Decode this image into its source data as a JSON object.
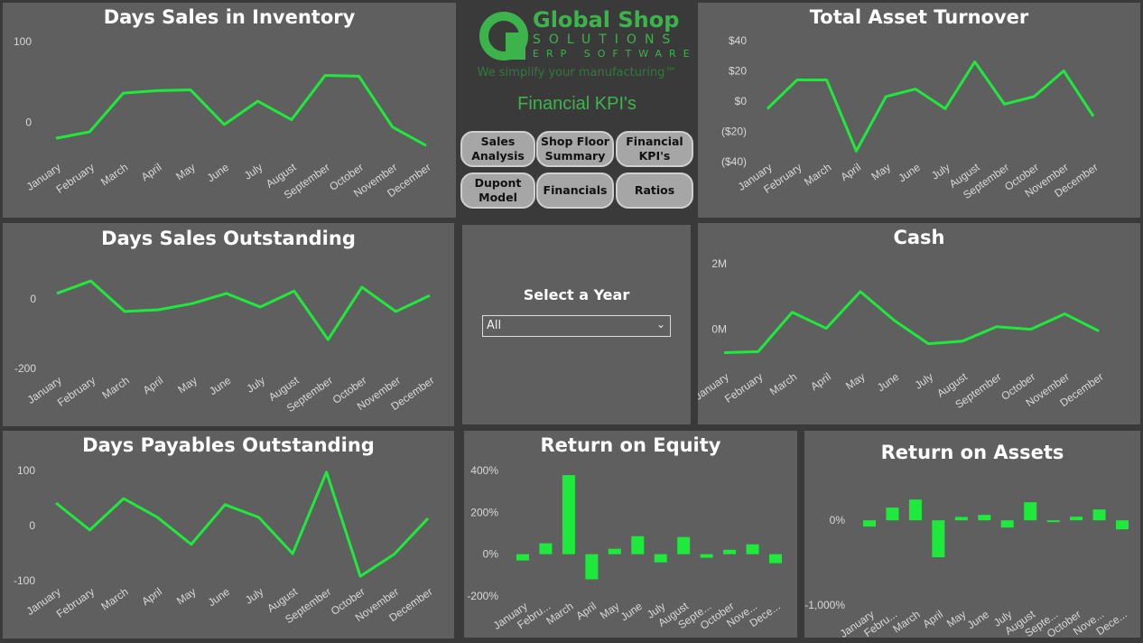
{
  "logo": {
    "name": "Global Shop",
    "line2": "SOLUTIONS",
    "line3": "ERP SOFTWARE",
    "tagline": "We simplify your manufacturing™",
    "color": "#3cb44b"
  },
  "page_title": "Financial KPI's",
  "nav": [
    "Sales\nAnalysis",
    "Shop Floor\nSummary",
    "Financial\nKPI's",
    "Dupont\nModel",
    "Financials",
    "Ratios"
  ],
  "year_filter": {
    "label": "Select a Year",
    "value": "All"
  },
  "line_color": "#1eea3c",
  "chart_data": [
    {
      "id": "dsi",
      "type": "line",
      "title": "Days Sales in Inventory",
      "categories": [
        "January",
        "February",
        "March",
        "April",
        "May",
        "June",
        "July",
        "August",
        "September",
        "October",
        "November",
        "December"
      ],
      "values": [
        -20,
        -12,
        36,
        39,
        40,
        -3,
        26,
        3,
        58,
        57,
        -6,
        -29
      ],
      "ylim": [
        -40,
        110
      ],
      "yticks": [
        {
          "v": 100,
          "label": "100"
        },
        {
          "v": 0,
          "label": "0"
        }
      ]
    },
    {
      "id": "tat",
      "type": "line",
      "title": "Total Asset Turnover",
      "categories": [
        "January",
        "February",
        "March",
        "April",
        "May",
        "June",
        "July",
        "August",
        "September",
        "October",
        "November",
        "December"
      ],
      "values": [
        -5,
        14,
        14,
        -33,
        3,
        8,
        -5,
        26,
        -2,
        3,
        20,
        -10
      ],
      "ylim": [
        -40,
        40
      ],
      "yticks": [
        {
          "v": 40,
          "label": "$40"
        },
        {
          "v": 20,
          "label": "$20"
        },
        {
          "v": 0,
          "label": "$0"
        },
        {
          "v": -20,
          "label": "($20)"
        },
        {
          "v": -40,
          "label": "($40)"
        }
      ]
    },
    {
      "id": "dso",
      "type": "line",
      "title": "Days Sales Outstanding",
      "categories": [
        "January",
        "February",
        "March",
        "April",
        "May",
        "June",
        "July",
        "August",
        "September",
        "October",
        "November",
        "December"
      ],
      "values": [
        16,
        52,
        -36,
        -31,
        -13,
        16,
        -23,
        23,
        -117,
        34,
        -36,
        10
      ],
      "ylim": [
        -200,
        60
      ],
      "yticks": [
        {
          "v": 0,
          "label": "0"
        },
        {
          "v": -200,
          "label": "-200"
        }
      ]
    },
    {
      "id": "cash",
      "type": "line",
      "title": "Cash",
      "categories": [
        "January",
        "February",
        "March",
        "April",
        "May",
        "June",
        "July",
        "August",
        "September",
        "October",
        "November",
        "December"
      ],
      "values": [
        -0.71,
        -0.68,
        0.52,
        0.03,
        1.15,
        0.27,
        -0.44,
        -0.36,
        0.08,
        0,
        0.47,
        -0.05
      ],
      "ylim": [
        -1,
        2
      ],
      "yticks": [
        {
          "v": 2,
          "label": "2M"
        },
        {
          "v": 0,
          "label": "0M"
        }
      ]
    },
    {
      "id": "dpo",
      "type": "line",
      "title": "Days Payables Outstanding",
      "categories": [
        "January",
        "February",
        "March",
        "April",
        "May",
        "June",
        "July",
        "August",
        "September",
        "October",
        "November",
        "December"
      ],
      "values": [
        41,
        -8,
        49,
        15,
        -34,
        38,
        15,
        -51,
        97,
        -92,
        -52,
        13
      ],
      "ylim": [
        -100,
        100
      ],
      "yticks": [
        {
          "v": 100,
          "label": "100"
        },
        {
          "v": 0,
          "label": "0"
        },
        {
          "v": -100,
          "label": "-100"
        }
      ]
    },
    {
      "id": "roe",
      "type": "bar",
      "title": "Return on Equity",
      "categories": [
        "January",
        "Febru...",
        "March",
        "April",
        "May",
        "June",
        "July",
        "August",
        "Septe...",
        "October",
        "Nove...",
        "Dece..."
      ],
      "values": [
        -30,
        52,
        378,
        -120,
        26,
        86,
        -39,
        82,
        -17,
        21,
        47,
        -43
      ],
      "ylim": [
        -200,
        400
      ],
      "yticks": [
        {
          "v": 400,
          "label": "400%"
        },
        {
          "v": 200,
          "label": "200%"
        },
        {
          "v": 0,
          "label": "0%"
        },
        {
          "v": -200,
          "label": "-200%"
        }
      ]
    },
    {
      "id": "roa",
      "type": "bar",
      "title": "Return on Assets",
      "categories": [
        "January",
        "Febru...",
        "March",
        "April",
        "May",
        "June",
        "July",
        "August",
        "Septe...",
        "October",
        "Nove...",
        "Dece..."
      ],
      "values": [
        -74,
        150,
        245,
        -436,
        40,
        64,
        -85,
        213,
        -21,
        43,
        128,
        -106
      ],
      "ylim": [
        -1000,
        300
      ],
      "yticks": [
        {
          "v": 0,
          "label": "0%"
        },
        {
          "v": -1000,
          "label": "-1,000%"
        }
      ]
    }
  ]
}
